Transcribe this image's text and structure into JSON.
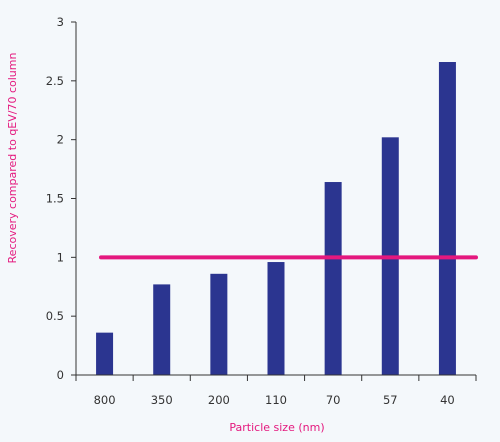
{
  "colors": {
    "background": "#f4f8fb",
    "bar": "#2b3590",
    "reference_line": "#e4187e",
    "axis": "#333333",
    "axis_title": "#e4187e",
    "tick_text": "#333333"
  },
  "chart_data": {
    "type": "bar",
    "categories": [
      "800",
      "350",
      "200",
      "110",
      "70",
      "57",
      "40"
    ],
    "values": [
      0.36,
      0.77,
      0.86,
      0.96,
      1.64,
      2.02,
      2.66
    ],
    "reference_line": {
      "y": 1
    },
    "xlabel": "Particle size (nm)",
    "ylabel": "Recovery compared to qEV/70 column",
    "ylim": [
      0,
      3
    ],
    "yticks": [
      "0",
      "0.5",
      "1",
      "1.5",
      "2",
      "2.5",
      "3"
    ],
    "grid": false,
    "legend": "none"
  }
}
